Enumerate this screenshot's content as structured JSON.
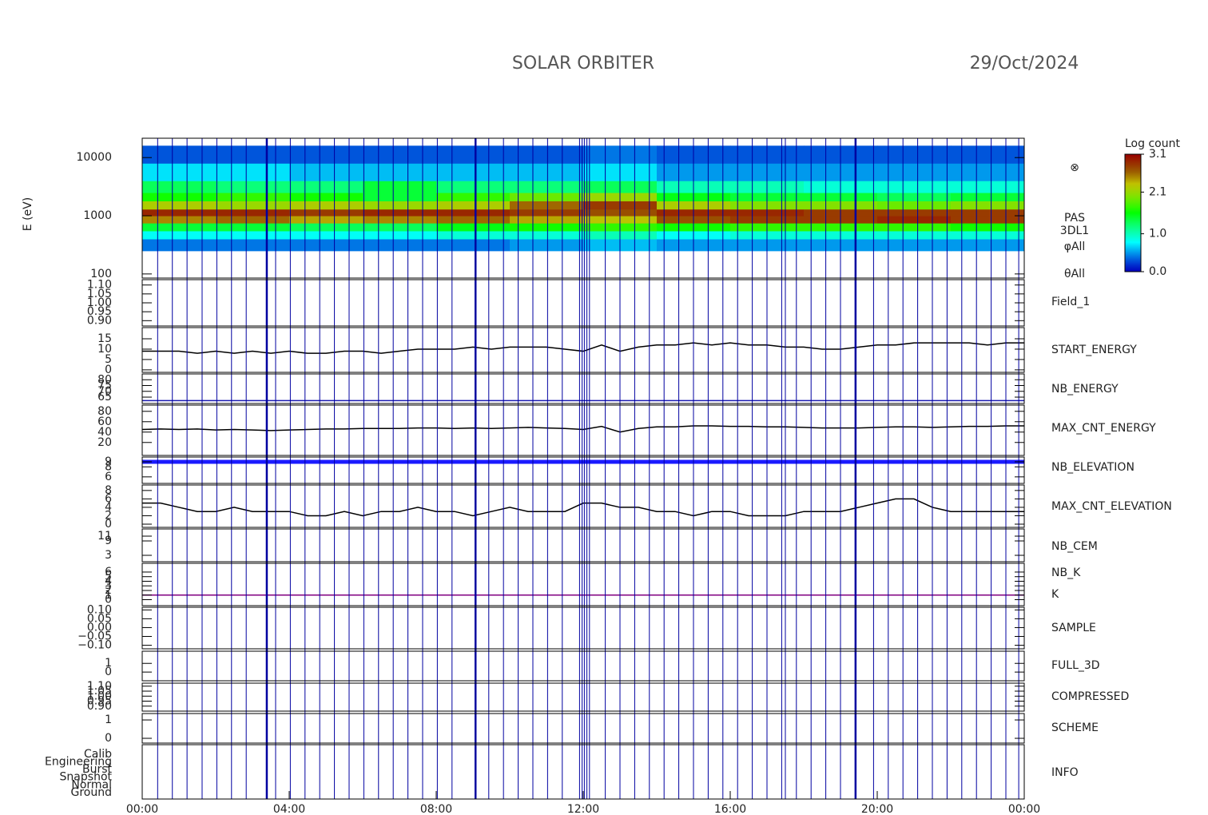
{
  "chart_data": {
    "type": "multi-panel",
    "title": "SOLAR ORBITER",
    "date": "29/Oct/2024",
    "xlim": [
      0,
      24
    ],
    "xticks": [
      {
        "value": 0,
        "label": "00:00"
      },
      {
        "value": 4,
        "label": "04:00"
      },
      {
        "value": 8,
        "label": "08:00"
      },
      {
        "value": 12,
        "label": "12:00"
      },
      {
        "value": 16,
        "label": "16:00"
      },
      {
        "value": 20,
        "label": "20:00"
      },
      {
        "value": 24,
        "label": "00:00"
      }
    ],
    "events": [
      0.42,
      0.82,
      1.22,
      1.63,
      2.03,
      2.43,
      2.83,
      3.63,
      4.03,
      4.43,
      4.83,
      5.23,
      5.63,
      6.03,
      6.43,
      6.83,
      7.23,
      7.63,
      8.03,
      8.43,
      9.43,
      9.83,
      10.23,
      10.63,
      11.03,
      11.43,
      11.9,
      11.97,
      12.03,
      12.1,
      12.17,
      12.6,
      13.0,
      13.4,
      13.8,
      14.2,
      14.6,
      15.0,
      15.4,
      15.8,
      16.2,
      16.6,
      17.0,
      17.4,
      17.5,
      17.8,
      18.2,
      18.6,
      19.0,
      19.9,
      20.3,
      20.7,
      21.1,
      21.5,
      21.9,
      22.3,
      22.7,
      23.1,
      23.5,
      23.85
    ],
    "major_events": [
      3.39,
      9.07,
      19.41
    ],
    "event_color": "#0000a0",
    "x": [
      0,
      0.5,
      1,
      1.5,
      2,
      2.5,
      3,
      3.5,
      4,
      4.5,
      5,
      5.5,
      6,
      6.5,
      7,
      7.5,
      8,
      8.5,
      9,
      9.5,
      10,
      10.5,
      11,
      11.5,
      12,
      12.5,
      13,
      13.5,
      14,
      14.5,
      15,
      15.5,
      16,
      16.5,
      17,
      17.5,
      18,
      18.5,
      19,
      19.5,
      20,
      20.5,
      21,
      21.5,
      22,
      22.5,
      23,
      23.5,
      24
    ],
    "panels": [
      {
        "type": "heatmap",
        "ylabel": "E (eV)",
        "log": true,
        "ylim": [
          85,
          21500
        ],
        "yticks": [
          100,
          1000,
          10000
        ],
        "labels": [
          {
            "text": "⊗",
            "color": "#000000"
          },
          {
            "text": "PAS",
            "color": "#000000"
          },
          {
            "text": "3DL1",
            "color": "#000000"
          },
          {
            "text": "φAll",
            "color": "#000000"
          },
          {
            "text": "θAll",
            "color": "#000000"
          }
        ],
        "x_bins": [
          0,
          2,
          4,
          6,
          8,
          10,
          12,
          14,
          16,
          18,
          20,
          22,
          24
        ],
        "y_bins": [
          250,
          400,
          550,
          750,
          1000,
          1300,
          1800,
          2500,
          4000,
          8000,
          16000
        ],
        "z": [
          [
            0.4,
            0.8,
            1.4,
            2.5,
            2.9,
            2.2,
            1.6,
            1.3,
            0.7,
            0.3
          ],
          [
            0.4,
            0.8,
            1.4,
            2.6,
            2.9,
            2.1,
            1.7,
            1.2,
            0.7,
            0.3
          ],
          [
            0.4,
            0.8,
            1.3,
            2.4,
            2.8,
            2.2,
            1.6,
            1.2,
            0.6,
            0.3
          ],
          [
            0.4,
            0.8,
            1.3,
            2.5,
            2.9,
            2.1,
            1.4,
            1.4,
            0.6,
            0.3
          ],
          [
            0.4,
            0.9,
            1.5,
            2.6,
            2.9,
            2.2,
            1.7,
            1.2,
            0.6,
            0.3
          ],
          [
            0.5,
            0.9,
            1.6,
            2.4,
            2.8,
            2.6,
            1.9,
            1.2,
            0.6,
            0.3
          ],
          [
            0.6,
            1.0,
            1.7,
            2.3,
            2.7,
            2.8,
            2.1,
            1.3,
            0.7,
            0.4
          ],
          [
            0.5,
            0.8,
            1.6,
            2.7,
            2.9,
            2.2,
            1.5,
            1.0,
            0.5,
            0.3
          ],
          [
            0.5,
            0.9,
            1.7,
            2.8,
            2.9,
            2.0,
            1.4,
            1.0,
            0.5,
            0.3
          ],
          [
            0.5,
            0.9,
            1.7,
            2.8,
            2.8,
            2.0,
            1.4,
            0.9,
            0.5,
            0.3
          ],
          [
            0.5,
            0.9,
            1.7,
            2.9,
            2.8,
            1.9,
            1.3,
            0.9,
            0.5,
            0.3
          ],
          [
            0.5,
            0.9,
            1.6,
            2.8,
            2.8,
            2.0,
            1.4,
            0.9,
            0.5,
            0.3
          ]
        ],
        "colormap": "rainbow",
        "colorbar": {
          "label": "Log count",
          "lim": [
            0,
            3.1
          ],
          "ticks": [
            {
              "value": 0,
              "label": "0.0"
            },
            {
              "value": 1,
              "label": "1.0"
            },
            {
              "value": 2.1,
              "label": "2.1"
            },
            {
              "value": 3.1,
              "label": "3.1"
            }
          ]
        }
      },
      {
        "type": "line",
        "labels": [
          {
            "text": "Field_1",
            "color": "#1a1ab0"
          }
        ],
        "ylim": [
          0.87,
          1.13
        ],
        "yticks": [
          {
            "value": 0.9,
            "label": "0.90"
          },
          {
            "value": 0.95,
            "label": "0.95"
          },
          {
            "value": 1.0,
            "label": "1.00"
          },
          {
            "value": 1.05,
            "label": "1.05"
          },
          {
            "value": 1.1,
            "label": "1.10"
          }
        ],
        "series": []
      },
      {
        "type": "line",
        "labels": [
          {
            "text": "START_ENERGY",
            "color": "#000000"
          }
        ],
        "ylim": [
          -1.2,
          20.4
        ],
        "yticks": [
          0,
          5,
          10,
          15
        ],
        "series": [
          {
            "color": "#000000",
            "values": [
              9,
              9,
              9,
              8,
              9,
              8,
              9,
              8,
              9,
              8,
              8,
              9,
              9,
              8,
              9,
              10,
              10,
              10,
              11,
              10,
              11,
              11,
              11,
              10,
              9,
              12,
              9,
              11,
              12,
              12,
              13,
              12,
              13,
              12,
              12,
              11,
              11,
              10,
              10,
              11,
              12,
              12,
              13,
              13,
              13,
              13,
              12,
              13,
              13
            ]
          }
        ]
      },
      {
        "type": "line",
        "labels": [
          {
            "text": "NB_ENERGY",
            "color": "#1a1ab0"
          }
        ],
        "ylim": [
          59.5,
          85
        ],
        "yticks": [
          65,
          70,
          75,
          80
        ],
        "series": [
          {
            "color": "#1a1ab0",
            "x": [
              0,
              24
            ],
            "values": [
              62,
              62
            ]
          }
        ]
      },
      {
        "type": "line",
        "labels": [
          {
            "text": "MAX_CNT_ENERGY",
            "color": "#000000"
          }
        ],
        "ylim": [
          -5,
          92
        ],
        "yticks": [
          20,
          40,
          60,
          80
        ],
        "series": [
          {
            "color": "#000000",
            "values": [
              45,
              46,
              45,
              46,
              44,
              45,
              44,
              43,
              44,
              45,
              46,
              46,
              47,
              47,
              47,
              48,
              48,
              47,
              48,
              47,
              48,
              49,
              48,
              47,
              45,
              51,
              40,
              47,
              50,
              50,
              52,
              52,
              51,
              51,
              50,
              50,
              49,
              48,
              48,
              48,
              49,
              50,
              50,
              49,
              50,
              51,
              51,
              52,
              52
            ]
          }
        ]
      },
      {
        "type": "line",
        "labels": [
          {
            "text": "NB_ELEVATION",
            "color": "#1a1ab0"
          }
        ],
        "ylim": [
          4.7,
          9.95
        ],
        "yticks": [
          6,
          8,
          9
        ],
        "series": [
          {
            "color": "#1a1aff",
            "x": [
              0,
              24
            ],
            "values": [
              9,
              9
            ]
          }
        ]
      },
      {
        "type": "line",
        "labels": [
          {
            "text": "MAX_CNT_ELEVATION",
            "color": "#000000"
          }
        ],
        "ylim": [
          -0.76,
          9.3
        ],
        "yticks": [
          0,
          2,
          4,
          6,
          8
        ],
        "series": [
          {
            "color": "#000000",
            "values": [
              5,
              5,
              4,
              3,
              3,
              4,
              3,
              3,
              3,
              2,
              2,
              3,
              2,
              3,
              3,
              4,
              3,
              3,
              2,
              3,
              4,
              3,
              3,
              3,
              5,
              5,
              4,
              4,
              3,
              3,
              2,
              3,
              3,
              2,
              2,
              2,
              3,
              3,
              3,
              4,
              5,
              6,
              6,
              4,
              3,
              3,
              3,
              3,
              3
            ]
          }
        ]
      },
      {
        "type": "line",
        "labels": [
          {
            "text": "NB_CEM",
            "color": "#1a1ab0"
          }
        ],
        "ylim": [
          0.33,
          14
        ],
        "yticks": [
          3,
          9,
          11
        ],
        "series": []
      },
      {
        "type": "line",
        "labels": [
          {
            "text": "NB_K",
            "color": "#cc0000"
          },
          {
            "text": "K",
            "color": "#1a1ab0"
          }
        ],
        "ylim": [
          -1.3,
          7.9
        ],
        "yticks": [
          0,
          1,
          2,
          3,
          4,
          5,
          6
        ],
        "series": [
          {
            "color": "#800080",
            "x": [
              0,
              24
            ],
            "values": [
              1,
              1
            ]
          }
        ]
      },
      {
        "type": "line",
        "labels": [
          {
            "text": "SAMPLE",
            "color": "#1a1ab0"
          }
        ],
        "ylim": [
          -0.12,
          0.115
        ],
        "yticks": [
          {
            "value": -0.1,
            "label": "−0.10"
          },
          {
            "value": -0.05,
            "label": "−0.05"
          },
          {
            "value": 0,
            "label": "0.00"
          },
          {
            "value": 0.05,
            "label": "0.05"
          },
          {
            "value": 0.1,
            "label": "0.10"
          }
        ],
        "series": []
      },
      {
        "type": "line",
        "labels": [
          {
            "text": "FULL_3D",
            "color": "#1a1ab0"
          }
        ],
        "ylim": [
          -1,
          2.4
        ],
        "yticks": [
          0,
          1
        ],
        "series": []
      },
      {
        "type": "line",
        "labels": [
          {
            "text": "COMPRESSED",
            "color": "#000000"
          }
        ],
        "ylim": [
          0.85,
          1.13
        ],
        "yticks": [
          {
            "value": 0.9,
            "label": "0.90"
          },
          {
            "value": 0.95,
            "label": "0.95"
          },
          {
            "value": 1.0,
            "label": "1.00"
          },
          {
            "value": 1.05,
            "label": "1.05"
          },
          {
            "value": 1.1,
            "label": "1.10"
          }
        ],
        "series": []
      },
      {
        "type": "line",
        "labels": [
          {
            "text": "SCHEME",
            "color": "#000000"
          }
        ],
        "ylim": [
          -0.26,
          1.35
        ],
        "yticks": [
          0,
          1
        ],
        "series": []
      },
      {
        "type": "categorical",
        "labels": [
          {
            "text": "INFO",
            "color": "#000000"
          }
        ],
        "categories": [
          "Calib",
          "Engineering",
          "Burst",
          "Snapshot",
          "Normal",
          "Ground"
        ],
        "series": []
      }
    ]
  }
}
